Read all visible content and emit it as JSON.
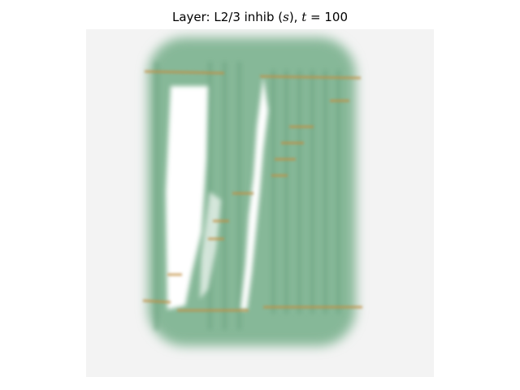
{
  "figure": {
    "title": {
      "prefix": "Layer: L2/3 inhib (",
      "italic_var": "s",
      "mid": "), ",
      "italic_t": "t",
      "suffix": " = 100"
    }
  },
  "image": {
    "description_colors": {
      "background": "#f3f3f3",
      "field": "#87b79a",
      "field_dark": "#6fa585",
      "gap": "#ffffff",
      "lines": "#c89a4a"
    }
  }
}
